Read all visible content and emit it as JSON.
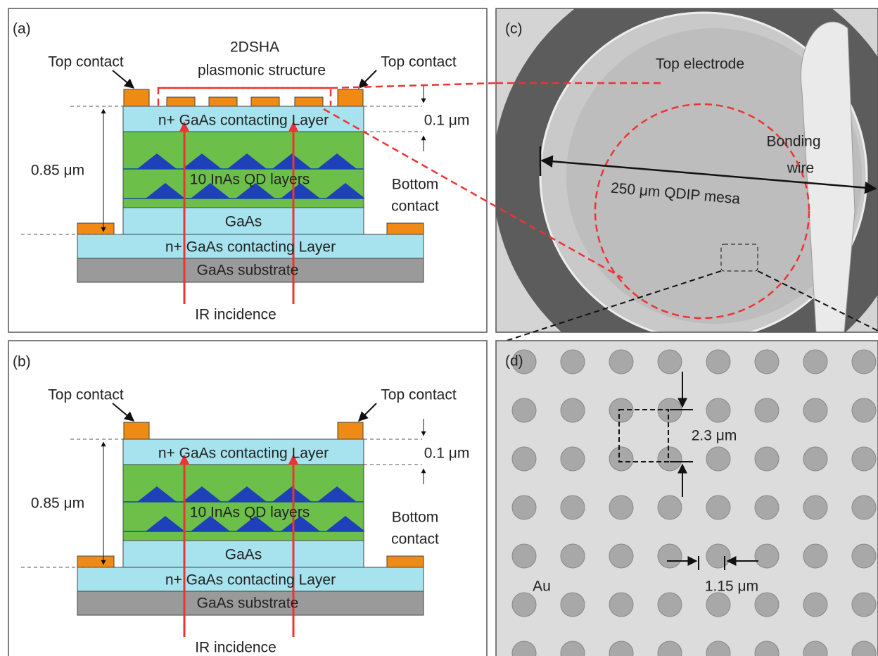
{
  "panels": {
    "a": {
      "label": "(a)",
      "top_contact_left": "Top contact",
      "top_contact_right": "Top contact",
      "plasmonic_line1": "2DSHA",
      "plasmonic_line2": "plasmonic structure",
      "top_layer": "n+ GaAs contacting Layer",
      "thickness_top": "0.1 μm",
      "thickness_total": "0.85 μm",
      "qd_layers": "10 InAs QD layers",
      "bottom_contact_line1": "Bottom",
      "bottom_contact_line2": "contact",
      "gaas": "GaAs",
      "bottom_layer": "n+ GaAs contacting Layer",
      "substrate": "GaAs substrate",
      "incidence": "IR incidence"
    },
    "b": {
      "label": "(b)",
      "top_contact_left": "Top contact",
      "top_contact_right": "Top contact",
      "top_layer": "n+ GaAs contacting Layer",
      "thickness_top": "0.1 μm",
      "thickness_total": "0.85 μm",
      "qd_layers": "10 InAs QD layers",
      "bottom_contact_line1": "Bottom",
      "bottom_contact_line2": "contact",
      "gaas": "GaAs",
      "bottom_layer": "n+ GaAs contacting Layer",
      "substrate": "GaAs substrate",
      "incidence": "IR incidence"
    },
    "c": {
      "label": "(c)",
      "top_electrode": "Top electrode",
      "wire_line1": "Bonding",
      "wire_line2": "wire",
      "mesa": "250 μm QDIP mesa"
    },
    "d": {
      "label": "(d)",
      "period": "2.3 μm",
      "diameter": "1.15 μm",
      "metal": "Au"
    }
  }
}
